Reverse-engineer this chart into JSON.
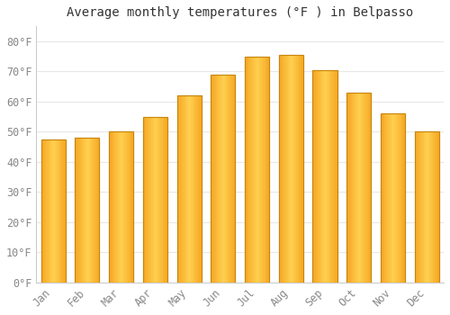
{
  "title": "Average monthly temperatures (°F ) in Belpasso",
  "months": [
    "Jan",
    "Feb",
    "Mar",
    "Apr",
    "May",
    "Jun",
    "Jul",
    "Aug",
    "Sep",
    "Oct",
    "Nov",
    "Dec"
  ],
  "values": [
    47.5,
    48.0,
    50.0,
    55.0,
    62.0,
    69.0,
    75.0,
    75.5,
    70.5,
    63.0,
    56.0,
    50.0
  ],
  "bar_color_top": "#FFC72C",
  "bar_color_bottom": "#F5A623",
  "bar_edge_color": "#C8860A",
  "ylim": [
    0,
    85
  ],
  "yticks": [
    0,
    10,
    20,
    30,
    40,
    50,
    60,
    70,
    80
  ],
  "ytick_labels": [
    "0°F",
    "10°F",
    "20°F",
    "30°F",
    "40°F",
    "50°F",
    "60°F",
    "70°F",
    "80°F"
  ],
  "background_color": "#ffffff",
  "grid_color": "#e8e8e8",
  "title_fontsize": 10,
  "tick_fontsize": 8.5,
  "tick_color": "#888888"
}
